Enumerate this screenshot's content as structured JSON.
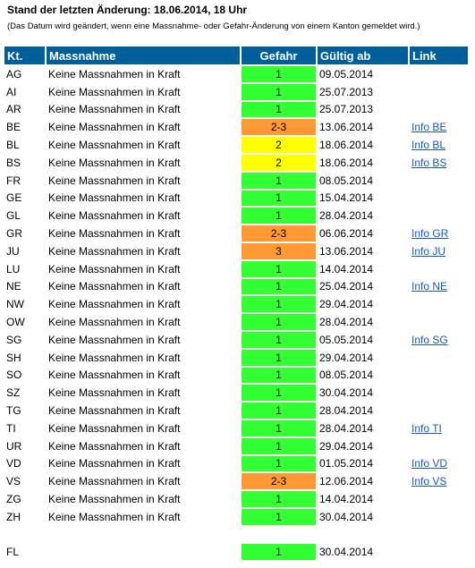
{
  "header": {
    "title": "Stand der letzten Änderung: 18.06.2014, 18 Uhr",
    "note": "(Das Datum wird geändert, wenn eine Massnahme- oder Gefahr-Änderung von einem Kanton gemeldet wird.)"
  },
  "table": {
    "columns": [
      "Kt.",
      "Massnahme",
      "Gefahr",
      "Gültig ab",
      "Link"
    ],
    "level_colors": {
      "1": "#33ff33",
      "2": "#ffff00",
      "2-3": "#ff9933",
      "3": "#ff9933"
    },
    "rows": [
      {
        "kt": "AG",
        "massnahme": "Keine Massnahmen in Kraft",
        "gefahr": "1",
        "gueltig": "09.05.2014",
        "link": ""
      },
      {
        "kt": "AI",
        "massnahme": "Keine Massnahmen in Kraft",
        "gefahr": "1",
        "gueltig": "25.07.2013",
        "link": ""
      },
      {
        "kt": "AR",
        "massnahme": "Keine Massnahmen in Kraft",
        "gefahr": "1",
        "gueltig": "25.07.2013",
        "link": ""
      },
      {
        "kt": "BE",
        "massnahme": "Keine Massnahmen in Kraft",
        "gefahr": "2-3",
        "gueltig": "13.06.2014",
        "link": "Info BE"
      },
      {
        "kt": "BL",
        "massnahme": "Keine Massnahmen in Kraft",
        "gefahr": "2",
        "gueltig": "18.06.2014",
        "link": "Info BL"
      },
      {
        "kt": "BS",
        "massnahme": "Keine Massnahmen in Kraft",
        "gefahr": "2",
        "gueltig": "18.06.2014",
        "link": "Info BS"
      },
      {
        "kt": "FR",
        "massnahme": "Keine Massnahmen in Kraft",
        "gefahr": "1",
        "gueltig": "08.05.2014",
        "link": ""
      },
      {
        "kt": "GE",
        "massnahme": "Keine Massnahmen in Kraft",
        "gefahr": "1",
        "gueltig": "15.04.2014",
        "link": ""
      },
      {
        "kt": "GL",
        "massnahme": "Keine Massnahmen in Kraft",
        "gefahr": "1",
        "gueltig": "28.04.2014",
        "link": ""
      },
      {
        "kt": "GR",
        "massnahme": "Keine Massnahmen in Kraft",
        "gefahr": "2-3",
        "gueltig": "06.06.2014",
        "link": "Info GR"
      },
      {
        "kt": "JU",
        "massnahme": "Keine Massnahmen in Kraft",
        "gefahr": "3",
        "gueltig": "13.06.2014",
        "link": "Info JU"
      },
      {
        "kt": "LU",
        "massnahme": "Keine Massnahmen in Kraft",
        "gefahr": "1",
        "gueltig": "14.04.2014",
        "link": ""
      },
      {
        "kt": "NE",
        "massnahme": "Keine Massnahmen in Kraft",
        "gefahr": "1",
        "gueltig": "25.04.2014",
        "link": "Info NE"
      },
      {
        "kt": "NW",
        "massnahme": "Keine Massnahmen in Kraft",
        "gefahr": "1",
        "gueltig": "29.04.2014",
        "link": ""
      },
      {
        "kt": "OW",
        "massnahme": "Keine Massnahmen in Kraft",
        "gefahr": "1",
        "gueltig": "28.04.2014",
        "link": ""
      },
      {
        "kt": "SG",
        "massnahme": "Keine Massnahmen in Kraft",
        "gefahr": "1",
        "gueltig": "05.05.2014",
        "link": "Info SG"
      },
      {
        "kt": "SH",
        "massnahme": "Keine Massnahmen in Kraft",
        "gefahr": "1",
        "gueltig": "29.04.2014",
        "link": ""
      },
      {
        "kt": "SO",
        "massnahme": "Keine Massnahmen in Kraft",
        "gefahr": "1",
        "gueltig": "08.05.2014",
        "link": ""
      },
      {
        "kt": "SZ",
        "massnahme": "Keine Massnahmen in Kraft",
        "gefahr": "1",
        "gueltig": "30.04.2014",
        "link": ""
      },
      {
        "kt": "TG",
        "massnahme": "Keine Massnahmen in Kraft",
        "gefahr": "1",
        "gueltig": "28.04.2014",
        "link": ""
      },
      {
        "kt": "TI",
        "massnahme": "Keine Massnahmen in Kraft",
        "gefahr": "1",
        "gueltig": "28.04.2014",
        "link": "Info TI"
      },
      {
        "kt": "UR",
        "massnahme": "Keine Massnahmen in Kraft",
        "gefahr": "1",
        "gueltig": "29.04.2014",
        "link": ""
      },
      {
        "kt": "VD",
        "massnahme": "Keine Massnahmen in Kraft",
        "gefahr": "1",
        "gueltig": "01.05.2014",
        "link": "Info VD"
      },
      {
        "kt": "VS",
        "massnahme": "Keine Massnahmen in Kraft",
        "gefahr": "2-3",
        "gueltig": "12.06.2014",
        "link": "Info VS"
      },
      {
        "kt": "ZG",
        "massnahme": "Keine Massnahmen in Kraft",
        "gefahr": "1",
        "gueltig": "14.04.2014",
        "link": ""
      },
      {
        "kt": "ZH",
        "massnahme": "Keine Massnahmen in Kraft",
        "gefahr": "1",
        "gueltig": "30.04.2014",
        "link": ""
      }
    ],
    "extra_rows": [
      {
        "kt": "FL",
        "massnahme": "",
        "gefahr": "1",
        "gueltig": "30.04.2014",
        "link": ""
      }
    ]
  }
}
